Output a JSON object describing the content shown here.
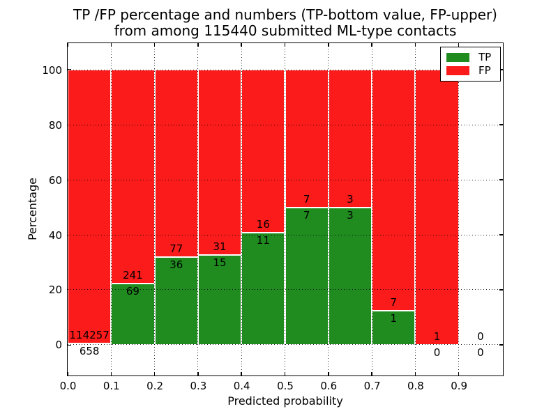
{
  "figure": {
    "title_line1": "TP /FP percentage and numbers (TP-bottom value, FP-upper)",
    "title_line2": "from among 115440 submitted ML-type contacts"
  },
  "chart_data": {
    "type": "bar",
    "subtype": "stacked-percentage",
    "title": "TP /FP percentage and numbers (TP-bottom value, FP-upper) from among 115440 submitted ML-type contacts",
    "xlabel": "Predicted probability",
    "ylabel": "Percentage",
    "xlim": [
      0.0,
      1.0
    ],
    "ylim": [
      -10.8,
      109.5
    ],
    "grid": "dotted",
    "total_contacts": 115440,
    "x_tick_labels": [
      "0.0",
      "0.1",
      "0.2",
      "0.3",
      "0.4",
      "0.5",
      "0.6",
      "0.7",
      "0.8",
      "0.9"
    ],
    "y_tick_values": [
      0,
      20,
      40,
      60,
      80,
      100
    ],
    "y_tick_labels": [
      "0",
      "20",
      "40",
      "60",
      "80",
      "100"
    ],
    "categories": [
      "0.0-0.1",
      "0.1-0.2",
      "0.2-0.3",
      "0.3-0.4",
      "0.4-0.5",
      "0.5-0.6",
      "0.6-0.7",
      "0.7-0.8",
      "0.8-0.9",
      "0.9-1.0"
    ],
    "series": [
      {
        "name": "TP",
        "color": "#208c20",
        "values": [
          658,
          69,
          36,
          15,
          11,
          7,
          3,
          1,
          0,
          0
        ]
      },
      {
        "name": "FP",
        "color": "#fb1b1b",
        "values": [
          114257,
          241,
          77,
          31,
          16,
          7,
          3,
          7,
          1,
          0
        ]
      }
    ],
    "legend": {
      "position": "upper right",
      "entries": [
        {
          "label": "TP",
          "color": "#208c20"
        },
        {
          "label": "FP",
          "color": "#fb1b1b"
        }
      ]
    }
  },
  "colors": {
    "tp": "#208c20",
    "fp": "#fb1b1b",
    "frame": "#000000",
    "background": "#ffffff"
  }
}
